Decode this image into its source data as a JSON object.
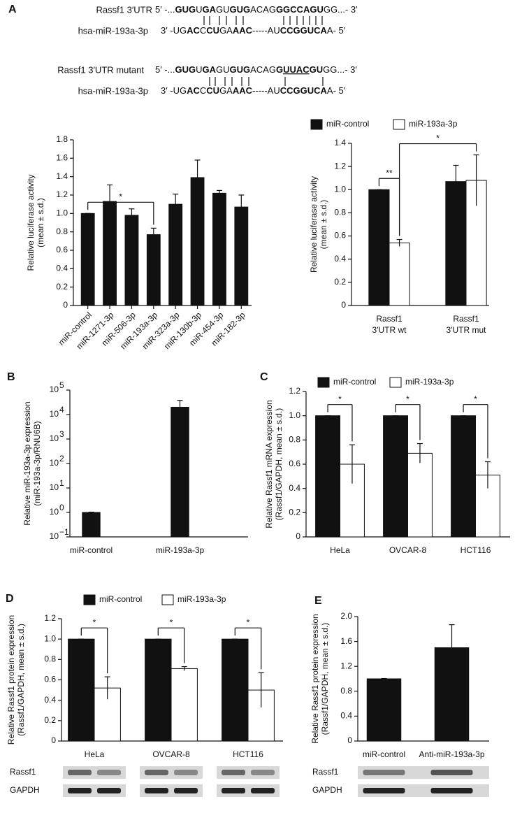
{
  "panel_labels": [
    "A",
    "B",
    "C",
    "D",
    "E"
  ],
  "sequences": [
    {
      "name": "Rassf1 3′UTR",
      "parts": [
        {
          "text": "5′ -..."
        },
        {
          "text": "GUG",
          "bold": true
        },
        {
          "text": "U"
        },
        {
          "text": "GA",
          "bold": true
        },
        {
          "text": "GU"
        },
        {
          "text": "GUG",
          "bold": true
        },
        {
          "text": "ACAG"
        },
        {
          "text": "GGCCAGU",
          "bold": true
        },
        {
          "text": "GG...- 3′"
        }
      ]
    },
    {
      "name": "hsa-miR-193a-3p",
      "parts": [
        {
          "text": "3′ -UG"
        },
        {
          "text": "AC",
          "bold": true
        },
        {
          "text": "C"
        },
        {
          "text": "CU",
          "bold": true
        },
        {
          "text": "GA"
        },
        {
          "text": "AAC",
          "bold": true
        },
        {
          "text": "-----AU"
        },
        {
          "text": "CCGGUCA",
          "bold": true
        },
        {
          "text": "A- 5′"
        }
      ]
    },
    {
      "name": "Rassf1 3′UTR mutant",
      "parts": [
        {
          "text": "5′ -..."
        },
        {
          "text": "GUG",
          "bold": true
        },
        {
          "text": "U"
        },
        {
          "text": "GA",
          "bold": true
        },
        {
          "text": "GU"
        },
        {
          "text": "GUG",
          "bold": true
        },
        {
          "text": "ACAG"
        },
        {
          "text": "G",
          "bold": true
        },
        {
          "text": "UUAC",
          "bold": true,
          "underline": true
        },
        {
          "text": "GU",
          "bold": true
        },
        {
          "text": "GG...- 3′"
        }
      ]
    },
    {
      "name": "hsa-miR-193a-3p",
      "parts": [
        {
          "text": "3′ -UG"
        },
        {
          "text": "AC",
          "bold": true
        },
        {
          "text": "C"
        },
        {
          "text": "CU",
          "bold": true
        },
        {
          "text": "GA"
        },
        {
          "text": "AAC",
          "bold": true
        },
        {
          "text": "-----AU"
        },
        {
          "text": "CCGGUCA",
          "bold": true
        },
        {
          "text": "A- 5′"
        }
      ]
    }
  ],
  "chart_data": [
    {
      "type": "bar",
      "ylabel": [
        "Relative luciferase activity",
        "(mean ± s.d.)"
      ],
      "categories": [
        "miR-control",
        "miR-1271-3p",
        "miR-506-3p",
        "miR-193a-3p",
        "miR-323a-3p",
        "miR-130b-3p",
        "miR-454-3p",
        "miR-182-3p"
      ],
      "values": [
        1.0,
        1.13,
        0.98,
        0.77,
        1.1,
        1.39,
        1.22,
        1.07
      ],
      "errors": [
        0,
        0.18,
        0.07,
        0.07,
        0.11,
        0.19,
        0.03,
        0.13
      ],
      "color": "#111111",
      "ylim": [
        0,
        1.8
      ],
      "yticks": [
        0,
        0.2,
        0.4,
        0.6,
        0.8,
        {
          "value": 1,
          "label": "1.0"
        },
        1.2,
        1.4,
        1.6,
        1.8
      ],
      "brackets": [
        {
          "text": "*",
          "from": [
            0,
            0
          ],
          "to": [
            3,
            0
          ]
        }
      ]
    },
    {
      "type": "bar",
      "ylabel": [
        "Relative luciferase activity",
        "(mean ± s.d.)"
      ],
      "categories": [
        [
          "Rassf1",
          "3′UTR wt"
        ],
        [
          "Rassf1",
          "3′UTR mut"
        ]
      ],
      "series": [
        {
          "name": "miR-control",
          "color": "#111111",
          "values": [
            1.0,
            1.07
          ],
          "errors": [
            0,
            0.14
          ]
        },
        {
          "name": "miR-193a-3p",
          "color": "#ffffff",
          "values": [
            0.54,
            1.08
          ],
          "errors": [
            0.03,
            0.22
          ]
        }
      ],
      "ylim": [
        0,
        1.4
      ],
      "yticks": [
        0,
        0.2,
        0.4,
        0.6,
        0.8,
        {
          "value": 1,
          "label": "1.0"
        },
        1.2,
        1.4
      ],
      "brackets": [
        {
          "text": "**",
          "from": [
            0,
            0
          ],
          "to": [
            0,
            1
          ]
        },
        {
          "text": "*",
          "from": [
            0,
            1
          ],
          "to": [
            1,
            1
          ]
        }
      ]
    },
    {
      "type": "bar",
      "log": true,
      "ylabel": [
        "Relative miR-193a-3p expression",
        "(miR-193a-3p/RNU6B)"
      ],
      "categories": [
        "miR-control",
        "miR-193a-3p"
      ],
      "values": [
        1,
        20000
      ],
      "errors": [
        0.03,
        18000
      ],
      "color": "#111111",
      "ylim": [
        0.1,
        100000
      ],
      "yticks": [
        {
          "value": 0.1,
          "label": "10",
          "exponent": "−1"
        },
        {
          "value": 1,
          "label": "10",
          "exponent": "0"
        },
        {
          "value": 10,
          "label": "10",
          "exponent": "1"
        },
        {
          "value": 100,
          "label": "10",
          "exponent": "2"
        },
        {
          "value": 1000,
          "label": "10",
          "exponent": "3"
        },
        {
          "value": 10000,
          "label": "10",
          "exponent": "4"
        },
        {
          "value": 100000,
          "label": "10",
          "exponent": "5"
        }
      ]
    },
    {
      "type": "bar",
      "ylabel": [
        "Relative Rassf1 mRNA expression",
        "(Rassf1/GAPDH, mean ± s.d.)"
      ],
      "categories": [
        "HeLa",
        "OVCAR-8",
        "HCT116"
      ],
      "series": [
        {
          "name": "miR-control",
          "color": "#111111",
          "values": [
            1.0,
            1.0,
            1.0
          ],
          "errors": [
            0,
            0,
            0
          ]
        },
        {
          "name": "miR-193a-3p",
          "color": "#ffffff",
          "values": [
            0.6,
            0.69,
            0.51
          ],
          "errors": [
            0.16,
            0.08,
            0.11
          ]
        }
      ],
      "ylim": [
        0,
        1.2
      ],
      "yticks": [
        0,
        0.2,
        0.4,
        0.6,
        0.8,
        {
          "value": 1,
          "label": "1.0"
        },
        1.2
      ],
      "brackets": [
        {
          "text": "*",
          "from": [
            0,
            0
          ],
          "to": [
            0,
            1
          ]
        },
        {
          "text": "*",
          "from": [
            1,
            0
          ],
          "to": [
            1,
            1
          ]
        },
        {
          "text": "*",
          "from": [
            2,
            0
          ],
          "to": [
            2,
            1
          ]
        }
      ]
    },
    {
      "type": "bar",
      "ylabel": [
        "Relative Rassf1 protein expression",
        "(Rassf1/GAPDH, mean ± s.d.)"
      ],
      "categories": [
        "HeLa",
        "OVCAR-8",
        "HCT116"
      ],
      "series": [
        {
          "name": "miR-control",
          "color": "#111111",
          "values": [
            1.0,
            1.0,
            1.0
          ],
          "errors": [
            0,
            0,
            0
          ]
        },
        {
          "name": "miR-193a-3p",
          "color": "#ffffff",
          "values": [
            0.52,
            0.71,
            0.5
          ],
          "errors": [
            0.11,
            0.02,
            0.17
          ]
        }
      ],
      "ylim": [
        0,
        1.2
      ],
      "yticks": [
        0,
        0.2,
        0.4,
        0.6,
        0.8,
        {
          "value": 1,
          "label": "1.0"
        },
        1.2
      ],
      "brackets": [
        {
          "text": "*",
          "from": [
            0,
            0
          ],
          "to": [
            0,
            1
          ]
        },
        {
          "text": "*",
          "from": [
            1,
            0
          ],
          "to": [
            1,
            1
          ]
        },
        {
          "text": "*",
          "from": [
            2,
            0
          ],
          "to": [
            2,
            1
          ]
        }
      ]
    },
    {
      "type": "bar",
      "ylabel": [
        "Relative Rassf1 protein expression",
        "(Rassf1/GAPDH, mean ± s.d.)"
      ],
      "categories": [
        "miR-control",
        "Anti-miR-193a-3p"
      ],
      "values": [
        1.0,
        1.5
      ],
      "errors": [
        0.005,
        0.37
      ],
      "color": "#111111",
      "ylim": [
        0,
        2
      ],
      "yticks": [
        0,
        0.4,
        0.8,
        1.2,
        1.6,
        {
          "value": 2,
          "label": "2.0"
        }
      ]
    }
  ],
  "blots": [
    {
      "rows": [
        "Rassf1",
        "GAPDH"
      ]
    },
    {
      "rows": [
        "Rassf1",
        "GAPDH"
      ]
    }
  ]
}
